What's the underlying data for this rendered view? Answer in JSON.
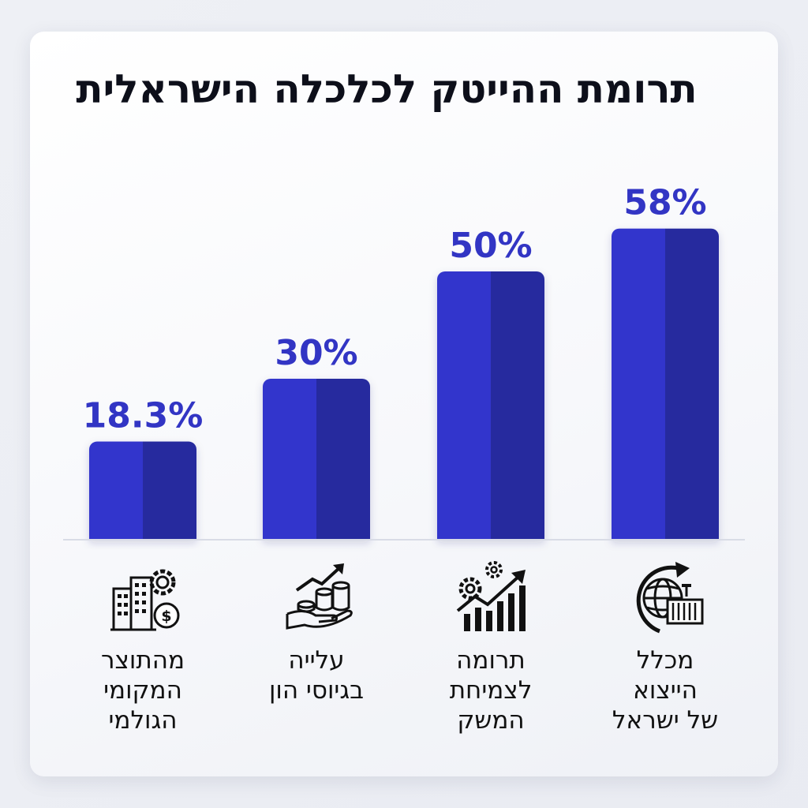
{
  "title": "תרומת ההייטק לכלכלה הישראלית",
  "colors": {
    "bar_light": "#3136cc",
    "bar_dark": "#252b9e",
    "label": "#3235c4",
    "text": "#0d0f1a"
  },
  "chart_data": {
    "type": "bar",
    "title": "תרומת ההייטק לכלכלה הישראלית",
    "categories": [
      "מהתוצר\nהמקומי\nהגולמי",
      "עלייה\nבגיוסי הון",
      "תרומה\nלצמיחת\nהמשק",
      "מכלל\nהייצוא\nשל ישראל"
    ],
    "values": [
      18.3,
      30,
      50,
      58
    ],
    "data_labels": [
      "18.3%",
      "30%",
      "50%",
      "58%"
    ],
    "icons": [
      "buildings-gear-dollar-icon",
      "hand-coins-growth-icon",
      "growth-chart-gears-icon",
      "globe-container-export-icon"
    ],
    "ylim": [
      0,
      100
    ],
    "grid": false,
    "legend": "none",
    "xlabel": "",
    "ylabel": ""
  }
}
